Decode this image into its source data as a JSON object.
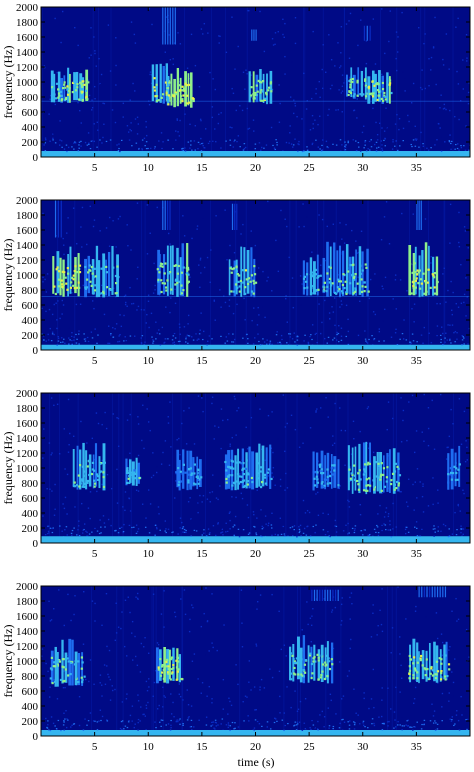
{
  "figure": {
    "xlabel": "time (s)"
  },
  "chart_data": [
    {
      "type": "heatmap",
      "title": "",
      "xlabel": "",
      "ylabel": "frequency (Hz)",
      "xlim": [
        0,
        40
      ],
      "ylim": [
        0,
        2000
      ],
      "x_ticks": [
        5,
        10,
        15,
        20,
        25,
        30,
        35
      ],
      "y_ticks": [
        0,
        200,
        400,
        600,
        800,
        1000,
        1200,
        1400,
        1600,
        1800,
        2000
      ],
      "colormap": [
        "#000a86",
        "#0a2cc4",
        "#1e6df0",
        "#35b6f0",
        "#8ef08a",
        "#e8f04a"
      ],
      "calls": [
        {
          "t": 0.8,
          "dur": 1.6,
          "f_low": 700,
          "f_high": 1200,
          "level": 0.75
        },
        {
          "t": 2.3,
          "dur": 2.1,
          "f_low": 700,
          "f_high": 1200,
          "level": 0.85
        },
        {
          "t": 10.3,
          "dur": 1.6,
          "f_low": 700,
          "f_high": 1300,
          "level": 0.85
        },
        {
          "t": 11.6,
          "dur": 2.6,
          "f_low": 650,
          "f_high": 1200,
          "level": 0.95
        },
        {
          "t": 19.3,
          "dur": 2.2,
          "f_low": 700,
          "f_high": 1200,
          "level": 0.8
        },
        {
          "t": 28.4,
          "dur": 2.0,
          "f_low": 750,
          "f_high": 1200,
          "level": 0.8
        },
        {
          "t": 30.4,
          "dur": 2.3,
          "f_low": 700,
          "f_high": 1200,
          "level": 0.85
        }
      ],
      "bursts": [
        {
          "t": 11.3,
          "dur": 1.4,
          "f_low": 1500,
          "f_high": 2000,
          "level": 0.35
        },
        {
          "t": 19.6,
          "dur": 0.6,
          "f_low": 1550,
          "f_high": 1700,
          "level": 0.3
        },
        {
          "t": 30.1,
          "dur": 0.8,
          "f_low": 1550,
          "f_high": 1750,
          "level": 0.3
        }
      ],
      "baseline_band": {
        "f_low": 0,
        "f_high": 80,
        "level": 0.55
      },
      "steady_line_hz": 750
    },
    {
      "type": "heatmap",
      "title": "",
      "xlabel": "",
      "ylabel": "frequency (Hz)",
      "xlim": [
        0,
        40
      ],
      "ylim": [
        0,
        2000
      ],
      "x_ticks": [
        5,
        10,
        15,
        20,
        25,
        30,
        35
      ],
      "y_ticks": [
        0,
        200,
        400,
        600,
        800,
        1000,
        1200,
        1400,
        1600,
        1800,
        2000
      ],
      "calls": [
        {
          "t": 1.0,
          "dur": 2.6,
          "f_low": 700,
          "f_high": 1400,
          "level": 0.95
        },
        {
          "t": 4.0,
          "dur": 3.2,
          "f_low": 700,
          "f_high": 1400,
          "level": 0.7
        },
        {
          "t": 10.7,
          "dur": 3.0,
          "f_low": 700,
          "f_high": 1450,
          "level": 0.8
        },
        {
          "t": 17.5,
          "dur": 2.5,
          "f_low": 700,
          "f_high": 1400,
          "level": 0.8
        },
        {
          "t": 24.3,
          "dur": 1.7,
          "f_low": 700,
          "f_high": 1300,
          "level": 0.65
        },
        {
          "t": 26.2,
          "dur": 4.3,
          "f_low": 700,
          "f_high": 1450,
          "level": 0.75
        },
        {
          "t": 34.2,
          "dur": 2.8,
          "f_low": 700,
          "f_high": 1450,
          "level": 0.9
        }
      ],
      "bursts": [
        {
          "t": 1.3,
          "dur": 0.8,
          "f_low": 1500,
          "f_high": 2000,
          "level": 0.3
        },
        {
          "t": 11.3,
          "dur": 0.9,
          "f_low": 1600,
          "f_high": 2000,
          "level": 0.3
        },
        {
          "t": 17.8,
          "dur": 0.6,
          "f_low": 1600,
          "f_high": 1950,
          "level": 0.3
        },
        {
          "t": 35.0,
          "dur": 0.6,
          "f_low": 1600,
          "f_high": 2000,
          "level": 0.3
        }
      ],
      "baseline_band": {
        "f_low": 0,
        "f_high": 70,
        "level": 0.5
      },
      "steady_line_hz": 720
    },
    {
      "type": "heatmap",
      "title": "",
      "xlabel": "",
      "ylabel": "frequency (Hz)",
      "xlim": [
        0,
        40
      ],
      "ylim": [
        0,
        2000
      ],
      "x_ticks": [
        5,
        10,
        15,
        20,
        25,
        30,
        35
      ],
      "y_ticks": [
        0,
        200,
        400,
        600,
        800,
        1000,
        1200,
        1400,
        1600,
        1800,
        2000
      ],
      "calls": [
        {
          "t": 2.9,
          "dur": 3.0,
          "f_low": 700,
          "f_high": 1350,
          "level": 0.7
        },
        {
          "t": 7.8,
          "dur": 1.5,
          "f_low": 750,
          "f_high": 1150,
          "level": 0.65
        },
        {
          "t": 12.5,
          "dur": 2.5,
          "f_low": 700,
          "f_high": 1250,
          "level": 0.6
        },
        {
          "t": 17.0,
          "dur": 4.5,
          "f_low": 700,
          "f_high": 1350,
          "level": 0.65
        },
        {
          "t": 25.3,
          "dur": 2.6,
          "f_low": 700,
          "f_high": 1250,
          "level": 0.6
        },
        {
          "t": 28.6,
          "dur": 4.8,
          "f_low": 650,
          "f_high": 1350,
          "level": 0.75
        },
        {
          "t": 37.8,
          "dur": 1.3,
          "f_low": 700,
          "f_high": 1300,
          "level": 0.55
        }
      ],
      "bursts": [],
      "baseline_band": {
        "f_low": 0,
        "f_high": 90,
        "level": 0.5
      },
      "steady_line_hz": null
    },
    {
      "type": "heatmap",
      "title": "",
      "xlabel": "time (s)",
      "ylabel": "frequency (Hz)",
      "xlim": [
        0,
        40
      ],
      "ylim": [
        0,
        2000
      ],
      "x_ticks": [
        5,
        10,
        15,
        20,
        25,
        30,
        35
      ],
      "y_ticks": [
        0,
        200,
        400,
        600,
        800,
        1000,
        1200,
        1400,
        1600,
        1800,
        2000
      ],
      "calls": [
        {
          "t": 0.8,
          "dur": 3.2,
          "f_low": 650,
          "f_high": 1300,
          "level": 0.75
        },
        {
          "t": 10.7,
          "dur": 2.4,
          "f_low": 700,
          "f_high": 1250,
          "level": 0.9
        },
        {
          "t": 23.1,
          "dur": 4.2,
          "f_low": 700,
          "f_high": 1350,
          "level": 0.75
        },
        {
          "t": 34.2,
          "dur": 3.8,
          "f_low": 700,
          "f_high": 1300,
          "level": 0.85
        }
      ],
      "bursts": [
        {
          "t": 25.2,
          "dur": 2.7,
          "f_low": 1800,
          "f_high": 1950,
          "level": 0.3
        },
        {
          "t": 35.2,
          "dur": 2.7,
          "f_low": 1850,
          "f_high": 2000,
          "level": 0.3
        }
      ],
      "baseline_band": {
        "f_low": 0,
        "f_high": 80,
        "level": 0.55
      },
      "steady_line_hz": null
    }
  ]
}
